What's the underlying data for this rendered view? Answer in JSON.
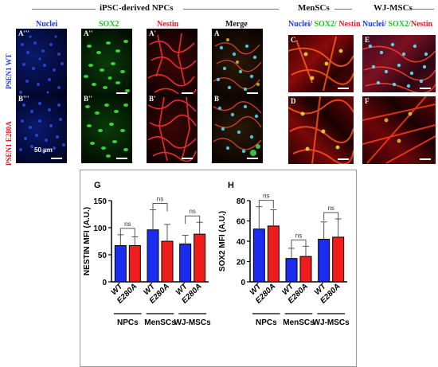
{
  "figure": {
    "group_headers": {
      "ipsc": "iPSC-derived NPCs",
      "mensc": "MenSCs",
      "wj": "WJ-MSCs"
    },
    "column_labels": {
      "nuclei": "Nuclei",
      "sox2": "SOX2",
      "nestin": "Nestin",
      "merge": "Merge",
      "combo_nuclei": "Nuclei/",
      "combo_sox2": " SOX2/ ",
      "combo_nestin": "Nestin",
      "combo2_sox2": " SOX2/"
    },
    "row_labels": {
      "wt": "PSEN1 WT",
      "mut": "PSEN1 E280A"
    },
    "panel_labels": {
      "a3": "A'''",
      "a2": "A''",
      "a1": "A'",
      "a": "A",
      "b3": "B'''",
      "b2": "B''",
      "b1": "B'",
      "b": "B",
      "c": "C",
      "d": "D",
      "e": "E",
      "f": "F"
    },
    "scale_text": "50 µm",
    "colors": {
      "nuclei": "#1f3bd6",
      "sox2": "#22c22a",
      "nestin": "#e0202a",
      "wt_bar": "#1a2cf0",
      "mut_bar": "#f01c1c"
    }
  },
  "chart_data": [
    {
      "panel": "G",
      "type": "bar",
      "ylabel": "NESTIN MFI (A.U.)",
      "ylim": [
        0,
        150
      ],
      "yticks": [
        "0",
        "50",
        "100",
        "150"
      ],
      "categories": [
        "WT",
        "E280A",
        "WT",
        "E280A",
        "WT",
        "E280A"
      ],
      "values": [
        67,
        67,
        96,
        75,
        70,
        88
      ],
      "errors": [
        20,
        16,
        37,
        31,
        16,
        22
      ],
      "groups": [
        "NPCs",
        "MenSCs",
        "WJ-MSCs"
      ],
      "significance": [
        "ns",
        "ns",
        "ns"
      ]
    },
    {
      "panel": "H",
      "type": "bar",
      "ylabel": "SOX2 MFI (A.U.)",
      "ylim": [
        0,
        80
      ],
      "yticks": [
        "0",
        "20",
        "40",
        "60",
        "80"
      ],
      "categories": [
        "WT",
        "E280A",
        "WT",
        "E280A",
        "WT",
        "E280A"
      ],
      "values": [
        52,
        55,
        23,
        25,
        42,
        44
      ],
      "errors": [
        22,
        16,
        10,
        10,
        17,
        18
      ],
      "groups": [
        "NPCs",
        "MenSCs",
        "WJ-MSCs"
      ],
      "significance": [
        "ns",
        "ns",
        "ns"
      ]
    }
  ]
}
